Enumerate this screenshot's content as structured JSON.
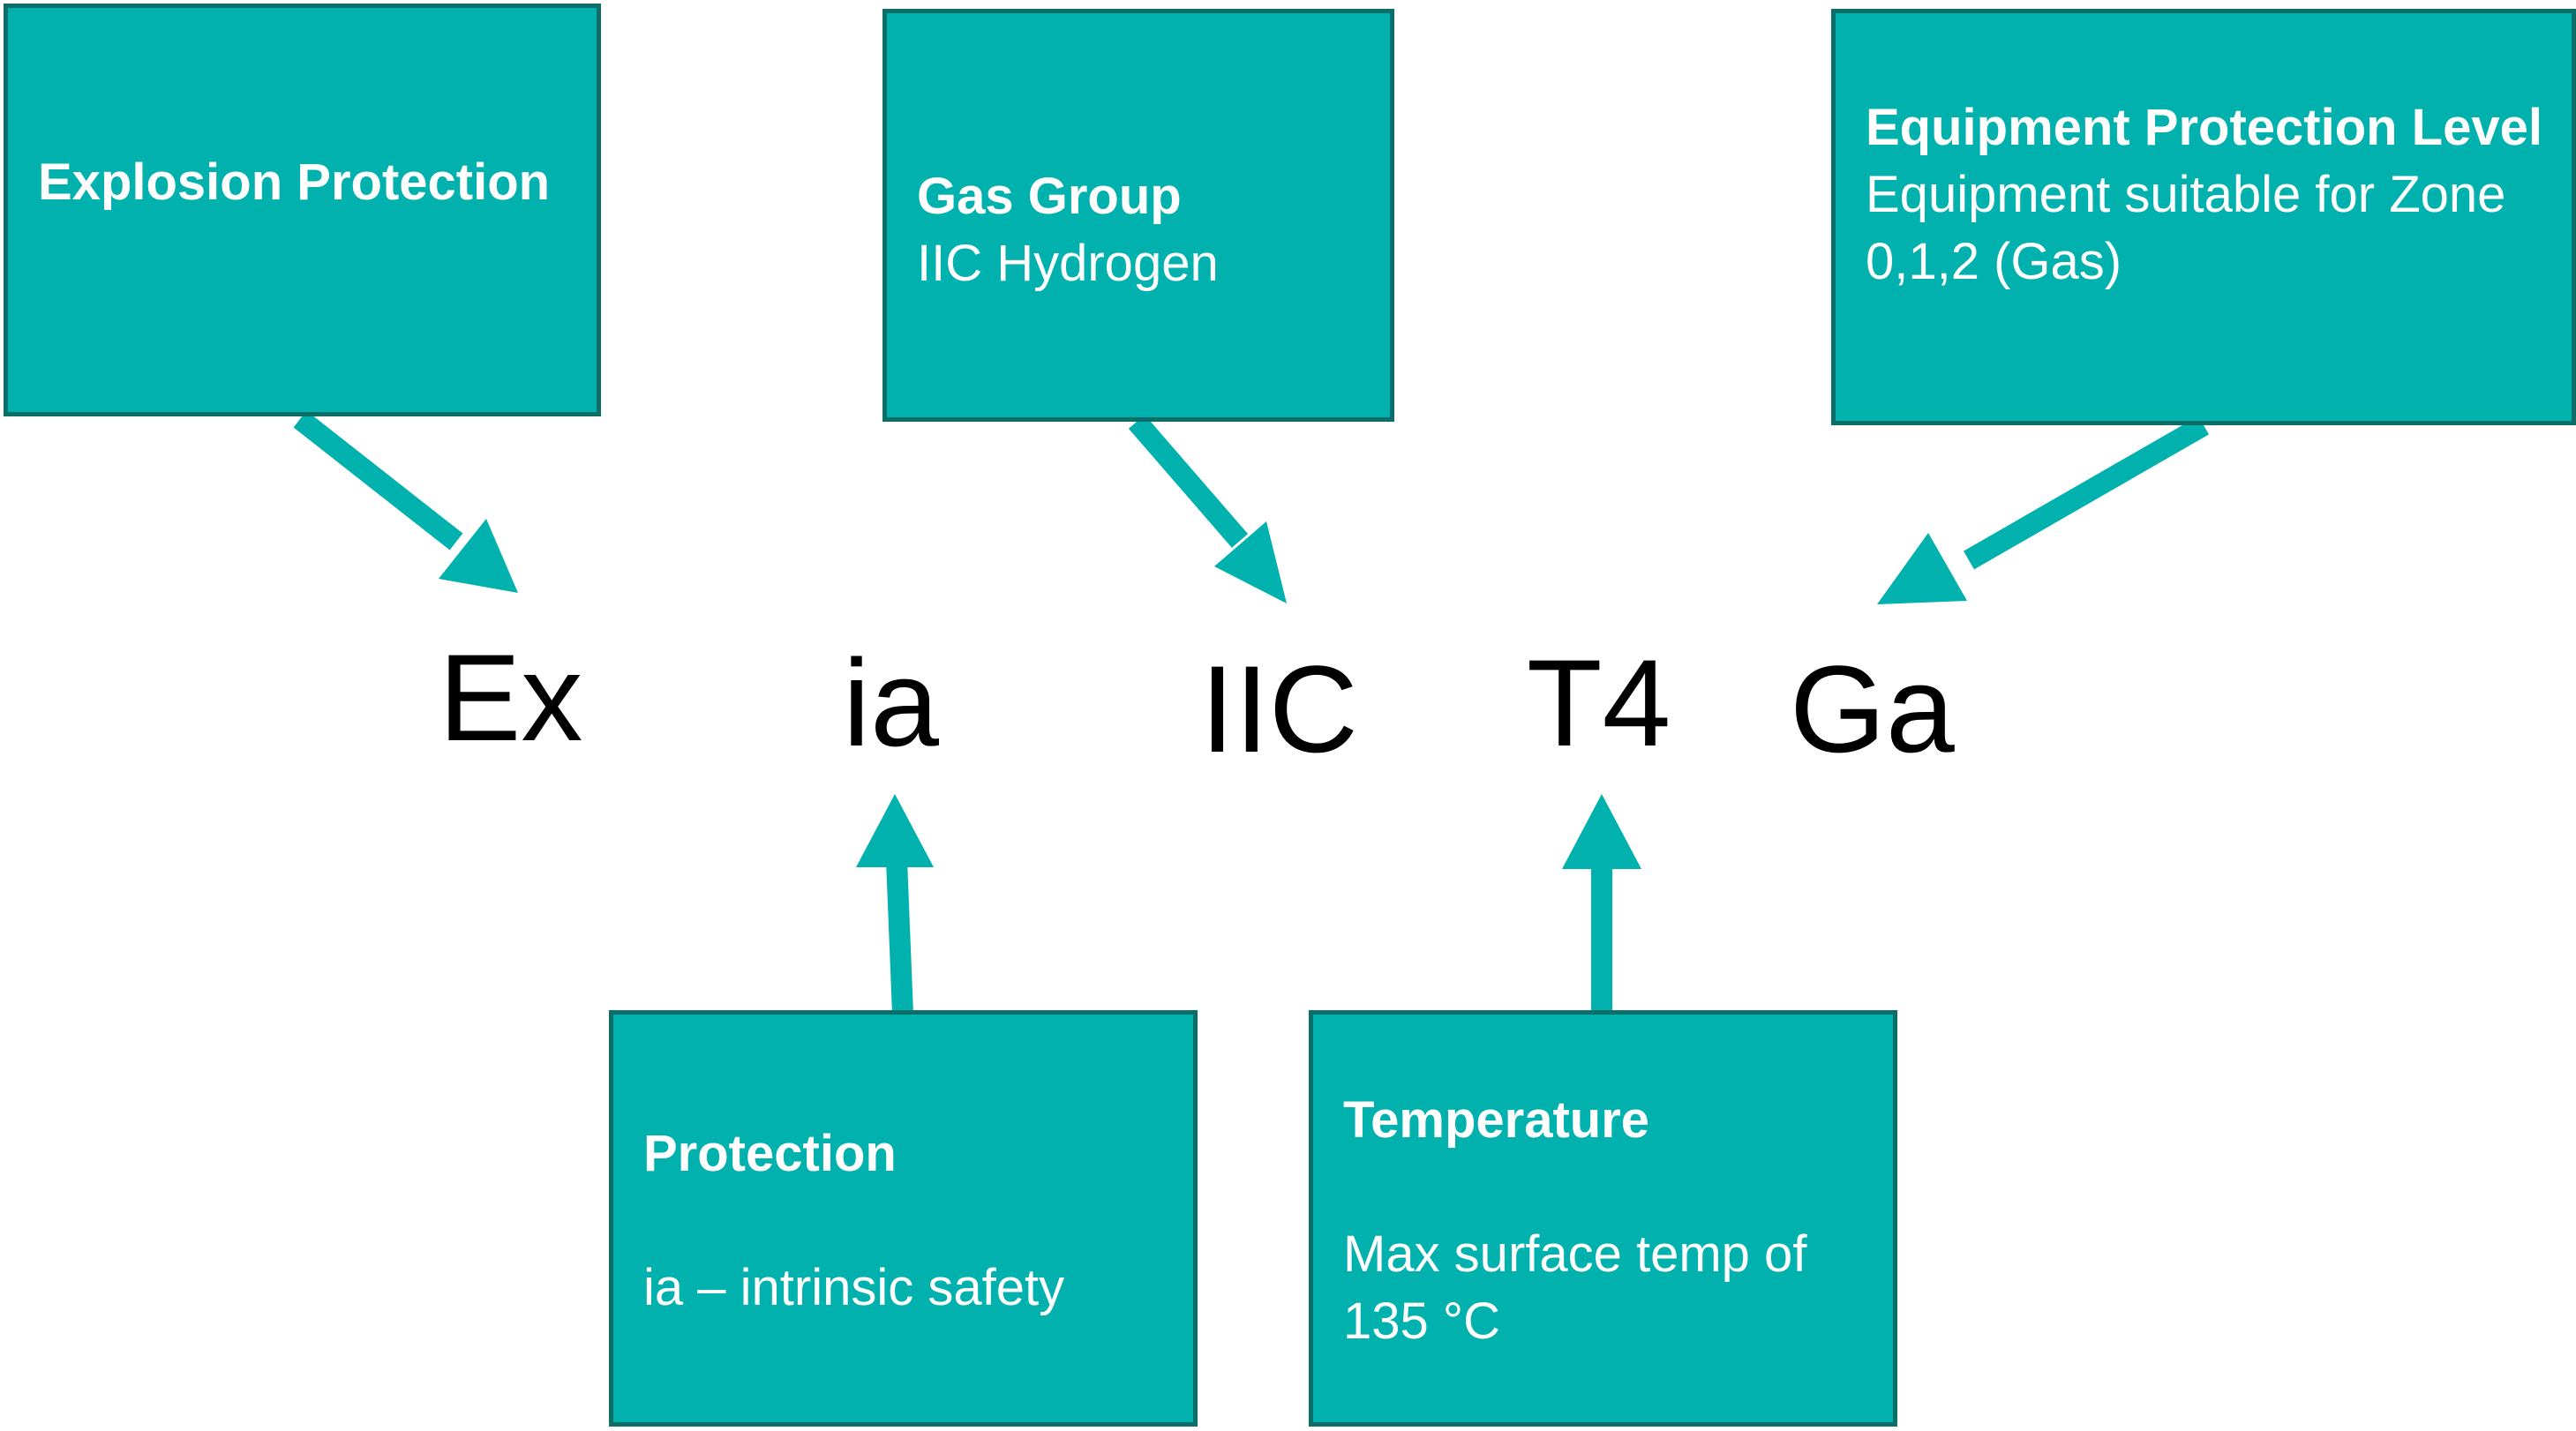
{
  "colors": {
    "box_fill": "#00b1ae",
    "box_border": "#0c6e69",
    "arrow": "#00b1ae",
    "box_text": "#ffffff",
    "code_text": "#000000"
  },
  "code": {
    "ex": "Ex",
    "ia": "ia",
    "iic": "IIC",
    "t4": "T4",
    "ga": "Ga"
  },
  "boxes": {
    "explosion": {
      "title": "Explosion Protection",
      "body": ""
    },
    "gas_group": {
      "title": "Gas Group",
      "body": "IIC Hydrogen"
    },
    "epl": {
      "title": "Equipment Protection Level",
      "body": "Equipment suitable for Zone 0,1,2 (Gas)"
    },
    "protection": {
      "title": "Protection",
      "body": "ia – intrinsic safety"
    },
    "temperature": {
      "title": "Temperature",
      "body": "Max surface temp of 135 °C"
    }
  }
}
